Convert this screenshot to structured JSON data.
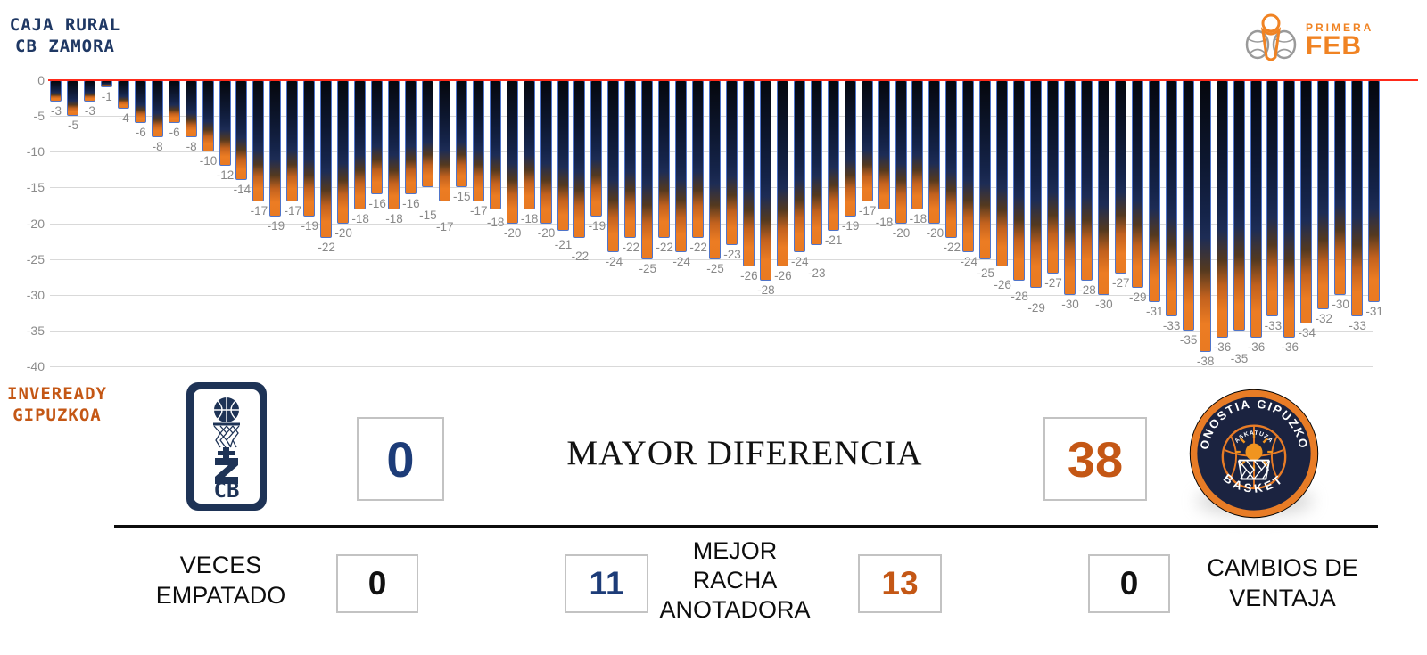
{
  "teams": {
    "home": {
      "name_line1": "CAJA RURAL",
      "name_line2": "CB ZAMORA",
      "color": "#1f3864"
    },
    "away": {
      "name_line1": "INVEREADY",
      "name_line2": "GIPUZKOA",
      "color": "#c45715"
    }
  },
  "league_logo": {
    "primary": "PRIMERA",
    "secondary": "FEB"
  },
  "chart_data": {
    "type": "bar",
    "title": "",
    "xlabel": "",
    "ylabel": "",
    "ylim": [
      -40,
      0
    ],
    "y_ticks": [
      0,
      -5,
      -10,
      -15,
      -20,
      -25,
      -30,
      -35,
      -40
    ],
    "grid": true,
    "zero_line_color": "#ff2a1a",
    "bar_border_color": "#4f74c9",
    "bar_top_color": "#0d1730",
    "bar_bottom_color": "#e97a22",
    "value_label_color": "#888888",
    "values": [
      -3,
      -5,
      -3,
      -1,
      -4,
      -6,
      -8,
      -6,
      -8,
      -10,
      -12,
      -14,
      -17,
      -19,
      -17,
      -19,
      -22,
      -20,
      -18,
      -16,
      -18,
      -16,
      -15,
      -17,
      -15,
      -17,
      -18,
      -20,
      -18,
      -20,
      -21,
      -22,
      -19,
      -24,
      -22,
      -25,
      -22,
      -24,
      -22,
      -25,
      -23,
      -26,
      -28,
      -26,
      -24,
      -23,
      -21,
      -19,
      -17,
      -18,
      -20,
      -18,
      -20,
      -22,
      -24,
      -25,
      -26,
      -28,
      -29,
      -27,
      -30,
      -28,
      -30,
      -27,
      -29,
      -31,
      -33,
      -35,
      -38,
      -36,
      -35,
      -36,
      -33,
      -36,
      -34,
      -32,
      -30,
      -33,
      -31
    ]
  },
  "stats": {
    "mayor_diferencia": {
      "label": "MAYOR DIFERENCIA",
      "home_value": "0",
      "away_value": "38"
    },
    "veces_empatado": {
      "label_lines": [
        "VECES",
        "EMPATADO"
      ],
      "value": "0"
    },
    "mejor_racha": {
      "label_lines": [
        "MEJOR",
        "RACHA",
        "ANOTADORA"
      ],
      "home_value": "11",
      "away_value": "13"
    },
    "cambios_ventaja": {
      "label_lines": [
        "CAMBIOS DE",
        "VENTAJA"
      ],
      "value": "0"
    }
  },
  "logos": {
    "zamora_monogram": "CB",
    "dgb_arc_top": "DONOSTIA   GIPUZKOA",
    "dgb_arc_bottom": "BASKET",
    "dgb_center_text": "ASKATUZA"
  }
}
